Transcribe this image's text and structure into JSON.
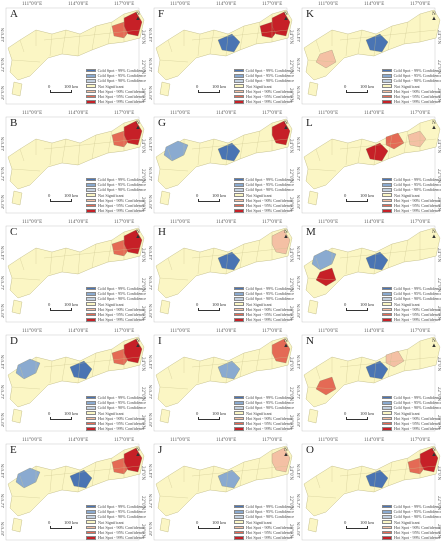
{
  "axes": {
    "top_ticks": [
      "111°0'0\"E",
      "114°0'0\"E",
      "117°0'0\"E"
    ],
    "left_ticks": [
      "24°0'N",
      "22°0'N",
      "20°0'N"
    ],
    "right_ticks": [
      "24°0'N",
      "22°0'N",
      "20°0'N"
    ]
  },
  "scale_bar": {
    "zero": "0",
    "dist": "100 km"
  },
  "north_label": "N",
  "legend": [
    {
      "label": "Cold Spot - 99% Confidence",
      "color": "#4a74b3"
    },
    {
      "label": "Cold Spot - 95% Confidence",
      "color": "#8aaad0"
    },
    {
      "label": "Cold Spot - 90% Confidence",
      "color": "#c3d0df"
    },
    {
      "label": "Not Significant",
      "color": "#fbf6c4"
    },
    {
      "label": "Hot Spot - 90% Confidence",
      "color": "#f4c0a4"
    },
    {
      "label": "Hot Spot - 95% Confidence",
      "color": "#e46a55"
    },
    {
      "label": "Hot Spot - 99% Confidence",
      "color": "#c62027"
    }
  ],
  "panels": [
    {
      "letter": "A",
      "hot99": [
        3
      ],
      "hot95": [
        2
      ],
      "hot90": [],
      "cold99": [],
      "cold95": [],
      "cold90": []
    },
    {
      "letter": "F",
      "hot99": [
        2,
        3
      ],
      "hot95": [],
      "hot90": [],
      "cold99": [
        1
      ],
      "cold95": [],
      "cold90": []
    },
    {
      "letter": "K",
      "hot99": [],
      "hot95": [],
      "hot90": [
        4
      ],
      "cold99": [
        1
      ],
      "cold95": [],
      "cold90": []
    },
    {
      "letter": "B",
      "hot99": [
        3
      ],
      "hot95": [
        2
      ],
      "hot90": [],
      "cold99": [],
      "cold95": [],
      "cold90": []
    },
    {
      "letter": "G",
      "hot99": [
        3
      ],
      "hot95": [],
      "hot90": [],
      "cold99": [
        1
      ],
      "cold95": [
        0
      ],
      "cold90": []
    },
    {
      "letter": "L",
      "hot99": [
        1
      ],
      "hot95": [
        5
      ],
      "hot90": [
        2
      ],
      "cold99": [],
      "cold95": [],
      "cold90": []
    },
    {
      "letter": "C",
      "hot99": [
        3
      ],
      "hot95": [
        2
      ],
      "hot90": [],
      "cold99": [],
      "cold95": [],
      "cold90": []
    },
    {
      "letter": "H",
      "hot99": [],
      "hot95": [],
      "hot90": [
        3
      ],
      "cold99": [
        1
      ],
      "cold95": [],
      "cold90": []
    },
    {
      "letter": "M",
      "hot99": [
        4
      ],
      "hot95": [],
      "hot90": [],
      "cold99": [
        1
      ],
      "cold95": [
        0
      ],
      "cold90": []
    },
    {
      "letter": "D",
      "hot99": [
        3
      ],
      "hot95": [
        2
      ],
      "hot90": [],
      "cold99": [
        1
      ],
      "cold95": [
        0
      ],
      "cold90": []
    },
    {
      "letter": "I",
      "hot99": [],
      "hot95": [
        3
      ],
      "hot90": [],
      "cold99": [],
      "cold95": [
        1
      ],
      "cold90": []
    },
    {
      "letter": "N",
      "hot99": [],
      "hot95": [
        4
      ],
      "hot90": [
        5
      ],
      "cold99": [
        1
      ],
      "cold95": [],
      "cold90": []
    },
    {
      "letter": "E",
      "hot99": [
        3
      ],
      "hot95": [
        2
      ],
      "hot90": [],
      "cold99": [
        1
      ],
      "cold95": [
        0
      ],
      "cold90": []
    },
    {
      "letter": "J",
      "hot99": [],
      "hot95": [],
      "hot90": [
        3
      ],
      "cold99": [],
      "cold95": [
        1
      ],
      "cold90": []
    },
    {
      "letter": "O",
      "hot99": [
        3
      ],
      "hot95": [
        2
      ],
      "hot90": [],
      "cold99": [
        1
      ],
      "cold95": [],
      "cold90": []
    }
  ]
}
